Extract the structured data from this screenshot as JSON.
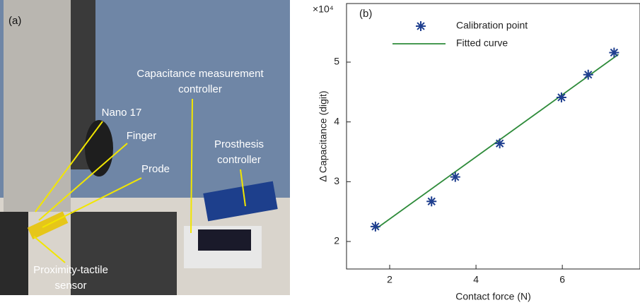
{
  "photo": {
    "panel_label": "(a)",
    "annotations": [
      {
        "lines": [
          "Capacitance measurement",
          "controller"
        ]
      },
      {
        "lines": [
          "Nano 17"
        ]
      },
      {
        "lines": [
          "Finger"
        ]
      },
      {
        "lines": [
          "Prode"
        ]
      },
      {
        "lines": [
          "Prosthesis",
          "controller"
        ]
      },
      {
        "lines": [
          "Proximity-tactile",
          "sensor"
        ]
      }
    ]
  },
  "chart_data": {
    "type": "scatter",
    "panel_label": "(b)",
    "x_label": "Contact force (N)",
    "y_label": "Δ Capacitance (digit)",
    "y_multiplier": "×10⁴",
    "xlim": [
      1,
      7.8
    ],
    "xticks": [
      2,
      4,
      6
    ],
    "ylim": [
      1.54,
      5.98
    ],
    "yticks": [
      2,
      3,
      4,
      5
    ],
    "legend": "upper left",
    "series": [
      {
        "name": "Calibration point",
        "color": "#1f3f8f",
        "style": "marker",
        "x": [
          1.67,
          2.97,
          3.52,
          4.55,
          5.98,
          6.6,
          7.2
        ],
        "values": [
          2.25,
          2.67,
          3.08,
          3.64,
          4.41,
          4.79,
          5.16
        ]
      },
      {
        "name": "Fitted curve",
        "color": "#2e8b3a",
        "style": "line",
        "x": [
          1.7,
          7.3
        ],
        "values": [
          2.22,
          5.13
        ]
      }
    ]
  }
}
